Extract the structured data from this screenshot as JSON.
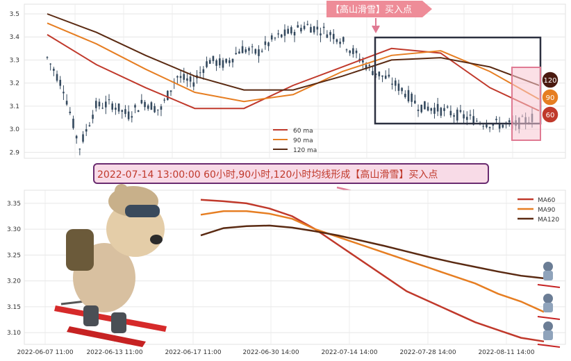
{
  "top_chart": {
    "y_ticks": [
      "3.5",
      "3.4",
      "3.3",
      "3.2",
      "3.1",
      "3.0",
      "2.9"
    ],
    "legend": [
      {
        "label": "60 ma",
        "color": "#c0392b"
      },
      {
        "label": "90 ma",
        "color": "#e67e22"
      },
      {
        "label": "120 ma",
        "color": "#5a2a12"
      }
    ],
    "signal_label": "【高山滑雪】买入点",
    "badges": [
      "120",
      "90",
      "60"
    ]
  },
  "banner": {
    "text": "2022-07-14 13:00:00 60小时,90小时,120小时均线形成【高山滑雪】买入点"
  },
  "bottom_chart": {
    "y_ticks": [
      "3.35",
      "3.30",
      "3.25",
      "3.20",
      "3.15",
      "3.10"
    ],
    "x_ticks": [
      "2022-06-07 11:00",
      "2022-06-13 11:00",
      "2022-06-17 11:00",
      "2022-06-30 14:00",
      "2022-07-14 14:00",
      "2022-07-28 14:00",
      "2022-08-11 14:00"
    ],
    "legend": [
      {
        "label": "MA60",
        "color": "#c0392b"
      },
      {
        "label": "MA90",
        "color": "#e67e22"
      },
      {
        "label": "MA120",
        "color": "#5a2a12"
      }
    ]
  },
  "chart_data": [
    {
      "type": "line",
      "description_ref": "candlestick price with moving averages",
      "ylim": [
        2.88,
        3.53
      ],
      "grid": true,
      "legend_position": "bottom-center",
      "x": [
        0,
        10,
        20,
        30,
        40,
        50,
        60,
        70,
        80,
        90,
        100
      ],
      "series": [
        {
          "name": "60 ma",
          "color": "#c0392b",
          "values": [
            3.41,
            3.28,
            3.18,
            3.09,
            3.09,
            3.19,
            3.27,
            3.35,
            3.33,
            3.18,
            3.08
          ]
        },
        {
          "name": "90 ma",
          "color": "#e67e22",
          "values": [
            3.46,
            3.37,
            3.26,
            3.16,
            3.12,
            3.15,
            3.25,
            3.32,
            3.34,
            3.25,
            3.13
          ]
        },
        {
          "name": "120 ma",
          "color": "#5a2a12",
          "values": [
            3.5,
            3.42,
            3.32,
            3.23,
            3.17,
            3.17,
            3.23,
            3.3,
            3.31,
            3.27,
            3.19
          ]
        }
      ],
      "price_path": [
        3.31,
        3.18,
        2.92,
        3.1,
        3.11,
        3.06,
        3.12,
        3.08,
        3.23,
        3.2,
        3.3,
        3.28,
        3.35,
        3.33,
        3.39,
        3.42,
        3.45,
        3.43,
        3.4,
        3.33,
        3.26,
        3.22,
        3.17,
        3.1,
        3.09,
        3.07,
        3.05,
        3.03,
        3.02,
        3.02,
        3.05
      ]
    },
    {
      "type": "line",
      "ylim": [
        3.08,
        3.37
      ],
      "grid": true,
      "legend_position": "top-right",
      "x_range": [
        "2022-06-30",
        "2022-08-16"
      ],
      "series": [
        {
          "name": "MA60",
          "color": "#c0392b",
          "values": [
            3.357,
            3.354,
            3.35,
            3.34,
            3.325,
            3.3,
            3.27,
            3.24,
            3.21,
            3.18,
            3.16,
            3.14,
            3.12,
            3.105,
            3.09,
            3.083
          ]
        },
        {
          "name": "MA90",
          "color": "#e67e22",
          "values": [
            3.328,
            3.335,
            3.335,
            3.33,
            3.32,
            3.3,
            3.285,
            3.27,
            3.255,
            3.24,
            3.225,
            3.21,
            3.195,
            3.175,
            3.16,
            3.14
          ]
        },
        {
          "name": "MA120",
          "color": "#5a2a12",
          "values": [
            3.288,
            3.302,
            3.306,
            3.307,
            3.303,
            3.296,
            3.288,
            3.278,
            3.268,
            3.257,
            3.246,
            3.236,
            3.227,
            3.218,
            3.21,
            3.205
          ]
        }
      ]
    }
  ]
}
